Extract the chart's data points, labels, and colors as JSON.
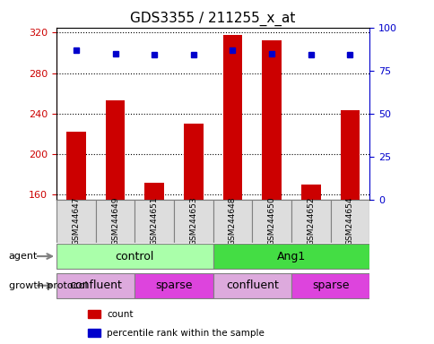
{
  "title": "GDS3355 / 211255_x_at",
  "samples": [
    "GSM244647",
    "GSM244649",
    "GSM244651",
    "GSM244653",
    "GSM244648",
    "GSM244650",
    "GSM244652",
    "GSM244654"
  ],
  "counts": [
    222,
    253,
    172,
    230,
    318,
    312,
    170,
    243
  ],
  "percentile_ranks": [
    87,
    85,
    84,
    84,
    87,
    85,
    84,
    84
  ],
  "ylim_left": [
    155,
    325
  ],
  "ylim_right": [
    0,
    100
  ],
  "yticks_left": [
    160,
    200,
    240,
    280,
    320
  ],
  "yticks_right": [
    0,
    25,
    50,
    75,
    100
  ],
  "agent_groups": [
    {
      "label": "control",
      "start": 0,
      "end": 4,
      "color": "#aaffaa"
    },
    {
      "label": "Ang1",
      "start": 4,
      "end": 8,
      "color": "#44dd44"
    }
  ],
  "protocol_groups": [
    {
      "label": "confluent",
      "start": 0,
      "end": 2,
      "color": "#ddaadd"
    },
    {
      "label": "sparse",
      "start": 2,
      "end": 4,
      "color": "#dd44dd"
    },
    {
      "label": "confluent",
      "start": 4,
      "end": 6,
      "color": "#ddaadd"
    },
    {
      "label": "sparse",
      "start": 6,
      "end": 8,
      "color": "#dd44dd"
    }
  ],
  "bar_color": "#cc0000",
  "dot_color": "#0000cc",
  "grid_color": "#000000",
  "left_axis_color": "#cc0000",
  "right_axis_color": "#0000cc",
  "legend_items": [
    {
      "color": "#cc0000",
      "label": "count"
    },
    {
      "color": "#0000cc",
      "label": "percentile rank within the sample"
    }
  ]
}
